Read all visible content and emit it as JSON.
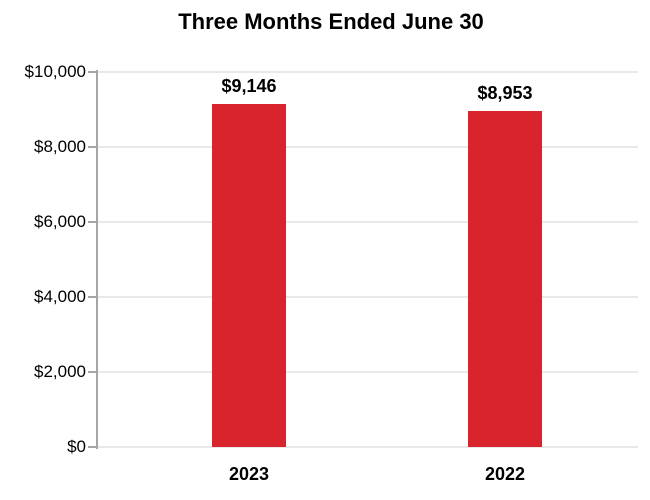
{
  "chart_data": {
    "type": "bar",
    "title": "Three Months Ended June 30",
    "categories": [
      "2023",
      "2022"
    ],
    "values": [
      9146,
      8953
    ],
    "value_labels": [
      "$9,146",
      "$8,953"
    ],
    "xlabel": "",
    "ylabel": "",
    "ylim": [
      0,
      10000
    ],
    "yticks": [
      0,
      2000,
      4000,
      6000,
      8000,
      10000
    ],
    "ytick_labels": [
      "$0",
      "$2,000",
      "$4,000",
      "$6,000",
      "$8,000",
      "$10,000"
    ],
    "grid": true,
    "legend_position": "none",
    "bar_color": "#d9242e"
  },
  "colors": {
    "bar": "#d9242e",
    "axis": "#a6a6a6",
    "gridline": "#e9e9e9",
    "text": "#000000",
    "background": "#ffffff"
  }
}
